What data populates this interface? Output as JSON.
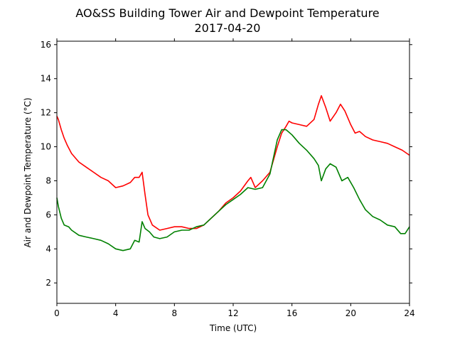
{
  "chart_data": {
    "type": "line",
    "title": "AO&SS Building Tower Air and Dewpoint Temperature",
    "subtitle": "2017-04-20",
    "xlabel": "Time (UTC)",
    "ylabel": "Air and Dewpoint Temperature (°C)",
    "xlim": [
      0,
      24
    ],
    "ylim": [
      0.8,
      16.2
    ],
    "xticks": [
      0,
      4,
      8,
      12,
      16,
      20,
      24
    ],
    "yticks": [
      2,
      4,
      6,
      8,
      10,
      12,
      14,
      16
    ],
    "grid": false,
    "legend": "none",
    "series": [
      {
        "color": "#ff0000",
        "x": [
          0,
          0.1,
          0.3,
          0.5,
          0.7,
          1.0,
          1.5,
          2.0,
          2.5,
          3.0,
          3.5,
          4.0,
          4.5,
          5.0,
          5.3,
          5.6,
          5.8,
          6.0,
          6.2,
          6.5,
          7.0,
          7.5,
          8.0,
          8.5,
          9.0,
          9.5,
          10.0,
          10.5,
          11.0,
          11.5,
          12.0,
          12.5,
          13.0,
          13.2,
          13.5,
          14.0,
          14.5,
          15.0,
          15.3,
          15.6,
          15.8,
          16.0,
          16.5,
          17.0,
          17.5,
          17.8,
          18.0,
          18.3,
          18.6,
          19.0,
          19.3,
          19.6,
          20.0,
          20.3,
          20.6,
          21.0,
          21.5,
          22.0,
          22.5,
          23.0,
          23.5,
          24.0
        ],
        "values": [
          11.8,
          11.6,
          11.0,
          10.5,
          10.1,
          9.6,
          9.1,
          8.8,
          8.5,
          8.2,
          8.0,
          7.6,
          7.7,
          7.9,
          8.2,
          8.2,
          8.5,
          7.2,
          6.0,
          5.4,
          5.1,
          5.2,
          5.3,
          5.3,
          5.2,
          5.2,
          5.4,
          5.8,
          6.2,
          6.7,
          7.0,
          7.4,
          8.0,
          8.2,
          7.6,
          8.0,
          8.5,
          10.0,
          10.8,
          11.2,
          11.5,
          11.4,
          11.3,
          11.2,
          11.6,
          12.5,
          13.0,
          12.3,
          11.5,
          12.0,
          12.5,
          12.1,
          11.3,
          10.8,
          10.9,
          10.6,
          10.4,
          10.3,
          10.2,
          10.0,
          9.8,
          9.5
        ]
      },
      {
        "color": "#008000",
        "x": [
          0,
          0.1,
          0.3,
          0.5,
          0.8,
          1.0,
          1.5,
          2.0,
          2.5,
          3.0,
          3.5,
          4.0,
          4.5,
          5.0,
          5.3,
          5.6,
          5.8,
          6.0,
          6.3,
          6.6,
          7.0,
          7.5,
          8.0,
          8.5,
          9.0,
          9.5,
          10.0,
          10.5,
          11.0,
          11.5,
          12.0,
          12.5,
          13.0,
          13.5,
          14.0,
          14.5,
          15.0,
          15.3,
          15.6,
          16.0,
          16.5,
          17.0,
          17.5,
          17.8,
          18.0,
          18.3,
          18.6,
          19.0,
          19.4,
          19.8,
          20.2,
          20.6,
          21.0,
          21.5,
          22.0,
          22.5,
          23.0,
          23.4,
          23.7,
          24.0
        ],
        "values": [
          7.0,
          6.5,
          5.8,
          5.4,
          5.3,
          5.1,
          4.8,
          4.7,
          4.6,
          4.5,
          4.3,
          4.0,
          3.9,
          4.0,
          4.5,
          4.4,
          5.6,
          5.2,
          5.0,
          4.7,
          4.6,
          4.7,
          5.0,
          5.1,
          5.1,
          5.3,
          5.4,
          5.8,
          6.2,
          6.6,
          6.9,
          7.2,
          7.6,
          7.5,
          7.6,
          8.4,
          10.4,
          11.0,
          11.0,
          10.7,
          10.2,
          9.8,
          9.3,
          8.9,
          8.0,
          8.7,
          9.0,
          8.8,
          8.0,
          8.2,
          7.6,
          6.9,
          6.3,
          5.9,
          5.7,
          5.4,
          5.3,
          4.9,
          4.9,
          5.3
        ]
      }
    ]
  }
}
